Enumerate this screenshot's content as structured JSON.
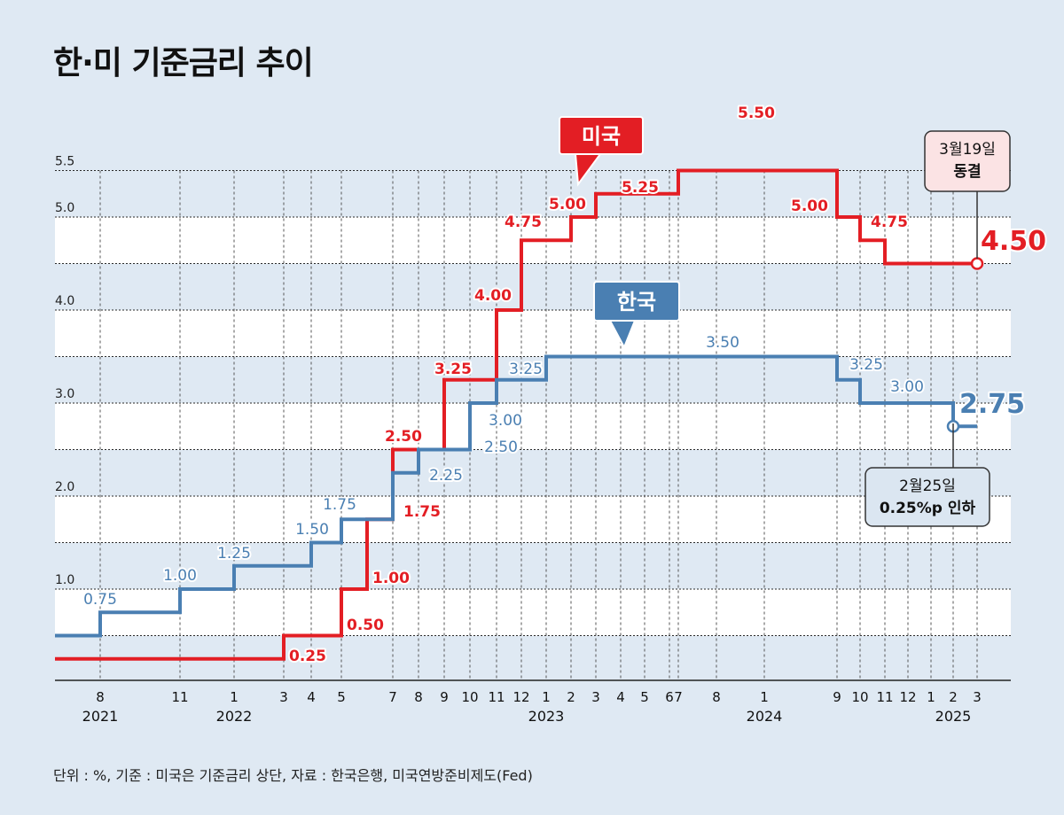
{
  "title": "한·미 기준금리 추이",
  "footnote": "단위 : %, 기준 : 미국은 기준금리 상단, 자료 : 한국은행, 미국연방준비제도(Fed)",
  "colors": {
    "us": "#e31e24",
    "kr": "#4a7fb2",
    "band": "#ffffff",
    "background": "#dfe9f3"
  },
  "chart_data": {
    "type": "line",
    "step": true,
    "title": "한·미 기준금리 추이",
    "unit": "%",
    "y_tick_labels": [
      {
        "value": 1.0,
        "label": "1.0"
      },
      {
        "value": 2.0,
        "label": "2.0"
      },
      {
        "value": 3.0,
        "label": "3.0"
      },
      {
        "value": 4.0,
        "label": "4.0"
      },
      {
        "value": 5.0,
        "label": "5.0"
      },
      {
        "value": 5.5,
        "label": "5.5"
      }
    ],
    "ylim": [
      0,
      5.5
    ],
    "months": [
      {
        "label": "8",
        "date": "2021-08"
      },
      {
        "label": "11",
        "date": "2021-11"
      },
      {
        "label": "1",
        "date": "2022-01"
      },
      {
        "label": "3",
        "date": "2022-03"
      },
      {
        "label": "4",
        "date": "2022-04"
      },
      {
        "label": "5",
        "date": "2022-05"
      },
      {
        "label": "7",
        "date": "2022-07"
      },
      {
        "label": "8",
        "date": "2022-08"
      },
      {
        "label": "9",
        "date": "2022-09"
      },
      {
        "label": "10",
        "date": "2022-10"
      },
      {
        "label": "11",
        "date": "2022-11"
      },
      {
        "label": "12",
        "date": "2022-12"
      },
      {
        "label": "1",
        "date": "2023-01"
      },
      {
        "label": "2",
        "date": "2023-02"
      },
      {
        "label": "3",
        "date": "2023-03"
      },
      {
        "label": "4",
        "date": "2023-04"
      },
      {
        "label": "5",
        "date": "2023-05"
      },
      {
        "label": "6",
        "date": "2023-06"
      },
      {
        "label": "7",
        "date": "2023-07"
      },
      {
        "label": "8",
        "date": "2023-08"
      },
      {
        "label": "1",
        "date": "2024-01"
      },
      {
        "label": "9",
        "date": "2024-09"
      },
      {
        "label": "10",
        "date": "2024-10"
      },
      {
        "label": "11",
        "date": "2024-11"
      },
      {
        "label": "12",
        "date": "2024-12"
      },
      {
        "label": "1",
        "date": "2025-01"
      },
      {
        "label": "2",
        "date": "2025-02"
      },
      {
        "label": "3",
        "date": "2025-03"
      }
    ],
    "years": [
      {
        "label": "2021",
        "date": "2021-08"
      },
      {
        "label": "2022",
        "date": "2022-01"
      },
      {
        "label": "2023",
        "date": "2023-01"
      },
      {
        "label": "2024",
        "date": "2024-01"
      },
      {
        "label": "2025",
        "date": "2025-02"
      }
    ],
    "series": [
      {
        "name": "미국",
        "color": "#e31e24",
        "steps": [
          {
            "date": "2021-06",
            "value": 0.25
          },
          {
            "date": "2022-03",
            "value": 0.5
          },
          {
            "date": "2022-05",
            "value": 1.0
          },
          {
            "date": "2022-06",
            "value": 1.75
          },
          {
            "date": "2022-07",
            "value": 2.5
          },
          {
            "date": "2022-09",
            "value": 3.25
          },
          {
            "date": "2022-11",
            "value": 4.0
          },
          {
            "date": "2022-12",
            "value": 4.75
          },
          {
            "date": "2023-02",
            "value": 5.0
          },
          {
            "date": "2023-03",
            "value": 5.25
          },
          {
            "date": "2023-05",
            "value": 5.25
          },
          {
            "date": "2023-07",
            "value": 5.5
          },
          {
            "date": "2024-09",
            "value": 5.0
          },
          {
            "date": "2024-10",
            "value": 4.75
          },
          {
            "date": "2024-11",
            "value": 4.5
          },
          {
            "date": "2025-03",
            "value": 4.5
          }
        ],
        "labels": [
          {
            "text": "0.25",
            "value": 0.25
          },
          {
            "text": "0.50",
            "value": 0.5
          },
          {
            "text": "1.00",
            "value": 1.0
          },
          {
            "text": "1.75",
            "value": 1.75
          },
          {
            "text": "2.50",
            "value": 2.5
          },
          {
            "text": "3.25",
            "value": 3.25
          },
          {
            "text": "4.00",
            "value": 4.0
          },
          {
            "text": "4.75",
            "value": 4.75
          },
          {
            "text": "5.00",
            "value": 5.0
          },
          {
            "text": "5.25",
            "value": 5.25
          },
          {
            "text": "5.50",
            "value": 5.5
          },
          {
            "text": "5.00",
            "value": 5.0
          },
          {
            "text": "4.75",
            "value": 4.75
          },
          {
            "text": "4.50",
            "value": 4.5
          }
        ]
      },
      {
        "name": "한국",
        "color": "#4a7fb2",
        "steps": [
          {
            "date": "2021-06",
            "value": 0.5
          },
          {
            "date": "2021-08",
            "value": 0.75
          },
          {
            "date": "2021-11",
            "value": 1.0
          },
          {
            "date": "2022-01",
            "value": 1.25
          },
          {
            "date": "2022-04",
            "value": 1.5
          },
          {
            "date": "2022-05",
            "value": 1.75
          },
          {
            "date": "2022-07",
            "value": 2.25
          },
          {
            "date": "2022-08",
            "value": 2.5
          },
          {
            "date": "2022-10",
            "value": 3.0
          },
          {
            "date": "2022-11",
            "value": 3.25
          },
          {
            "date": "2023-01",
            "value": 3.5
          },
          {
            "date": "2024-09",
            "value": 3.25
          },
          {
            "date": "2024-10",
            "value": 3.0
          },
          {
            "date": "2025-02",
            "value": 2.75
          },
          {
            "date": "2025-03",
            "value": 2.75
          }
        ],
        "labels": [
          {
            "text": "0.75",
            "value": 0.75
          },
          {
            "text": "1.00",
            "value": 1.0
          },
          {
            "text": "1.25",
            "value": 1.25
          },
          {
            "text": "1.50",
            "value": 1.5
          },
          {
            "text": "1.75",
            "value": 1.75
          },
          {
            "text": "2.25",
            "value": 2.25
          },
          {
            "text": "2.50",
            "value": 2.5
          },
          {
            "text": "3.00",
            "value": 3.0
          },
          {
            "text": "3.25",
            "value": 3.25
          },
          {
            "text": "3.50",
            "value": 3.5
          },
          {
            "text": "3.25",
            "value": 3.25
          },
          {
            "text": "3.00",
            "value": 3.0
          },
          {
            "text": "2.75",
            "value": 2.75
          }
        ]
      }
    ],
    "badges": [
      {
        "text": "미국",
        "color": "#e31e24"
      },
      {
        "text": "한국",
        "color": "#4a7fb2"
      }
    ],
    "callouts": [
      {
        "line1": "3월19일",
        "line2": "동결",
        "color": "#fbe3e4"
      },
      {
        "line1": "2월25일",
        "line2": "0.25%p 인하",
        "color": "#dbe6f1"
      }
    ]
  }
}
